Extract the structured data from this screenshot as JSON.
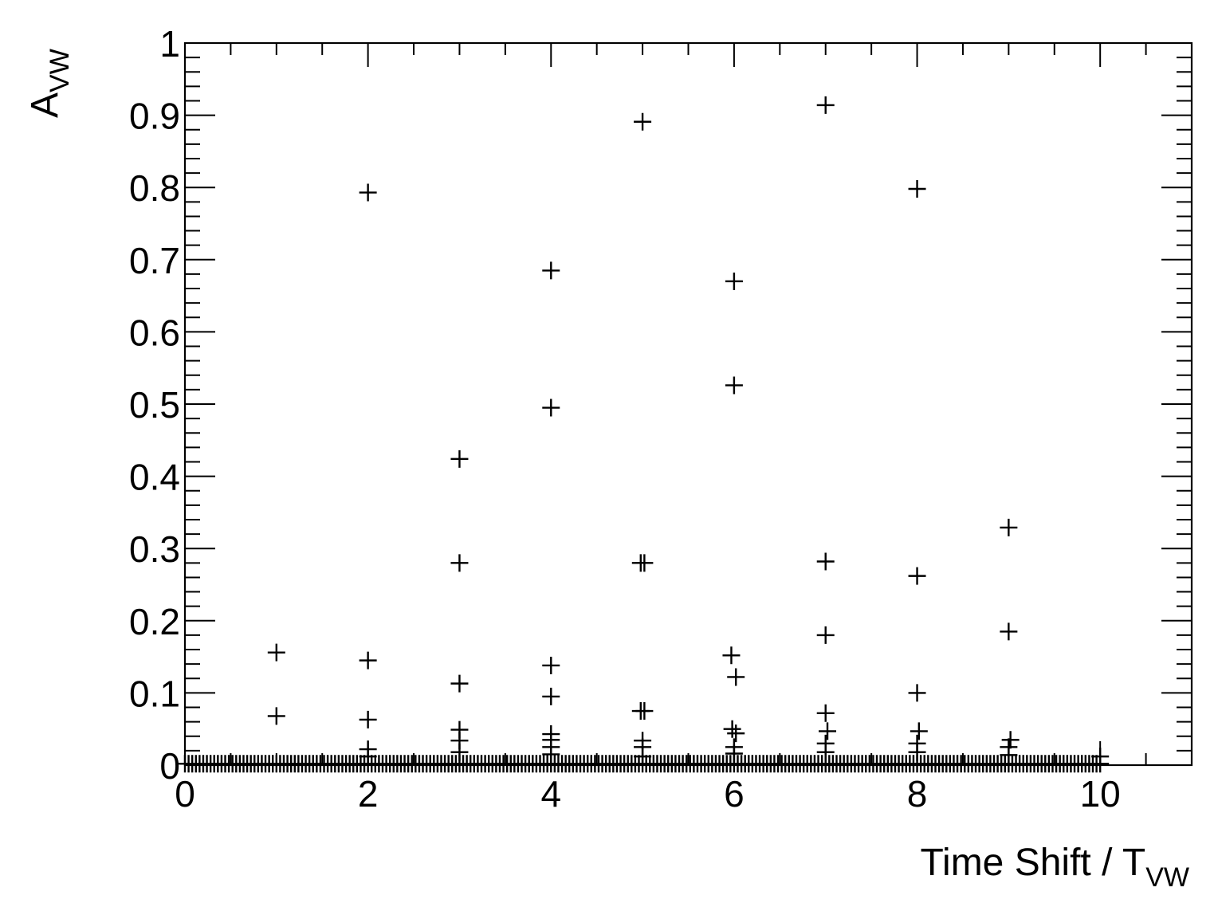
{
  "chart_data": {
    "type": "scatter",
    "marker": "+",
    "color": "#000000",
    "xlabel": {
      "main": "Time Shift / T",
      "sub": "VW"
    },
    "ylabel": {
      "main": "A",
      "sub": "VW"
    },
    "xlim": [
      0,
      11
    ],
    "ylim": [
      0,
      1
    ],
    "xticks": [
      0,
      2,
      4,
      6,
      8,
      10
    ],
    "xtick_labels": [
      "0",
      "2",
      "4",
      "6",
      "8",
      "10"
    ],
    "yticks": [
      0,
      0.1,
      0.2,
      0.3,
      0.4,
      0.5,
      0.6,
      0.7,
      0.8,
      0.9,
      1
    ],
    "ytick_labels": [
      "0",
      "0.1",
      "0.2",
      "0.3",
      "0.4",
      "0.5",
      "0.6",
      "0.7",
      "0.8",
      "0.9",
      "1"
    ],
    "grid": false,
    "legend": "none",
    "points": [
      [
        1.0,
        0.156
      ],
      [
        1.0,
        0.068
      ],
      [
        2.0,
        0.793
      ],
      [
        2.0,
        0.145
      ],
      [
        2.0,
        0.063
      ],
      [
        2.0,
        0.022
      ],
      [
        2.0,
        0.012
      ],
      [
        3.0,
        0.424
      ],
      [
        3.0,
        0.28
      ],
      [
        3.0,
        0.113
      ],
      [
        3.0,
        0.049
      ],
      [
        3.0,
        0.034
      ],
      [
        3.0,
        0.018
      ],
      [
        4.0,
        0.685
      ],
      [
        4.0,
        0.495
      ],
      [
        4.0,
        0.138
      ],
      [
        4.0,
        0.095
      ],
      [
        4.0,
        0.043
      ],
      [
        4.0,
        0.035
      ],
      [
        4.0,
        0.025
      ],
      [
        4.0,
        0.015
      ],
      [
        5.0,
        0.891
      ],
      [
        4.98,
        0.28
      ],
      [
        5.02,
        0.28
      ],
      [
        4.98,
        0.075
      ],
      [
        5.02,
        0.075
      ],
      [
        5.0,
        0.034
      ],
      [
        5.0,
        0.025
      ],
      [
        5.0,
        0.012
      ],
      [
        6.0,
        0.67
      ],
      [
        6.0,
        0.526
      ],
      [
        5.97,
        0.152
      ],
      [
        6.02,
        0.122
      ],
      [
        5.98,
        0.05
      ],
      [
        6.02,
        0.044
      ],
      [
        6.0,
        0.025
      ],
      [
        6.0,
        0.016
      ],
      [
        7.0,
        0.914
      ],
      [
        7.0,
        0.282
      ],
      [
        7.0,
        0.18
      ],
      [
        7.0,
        0.072
      ],
      [
        7.02,
        0.047
      ],
      [
        7.0,
        0.03
      ],
      [
        7.0,
        0.018
      ],
      [
        8.0,
        0.798
      ],
      [
        8.0,
        0.262
      ],
      [
        8.0,
        0.1
      ],
      [
        8.02,
        0.047
      ],
      [
        8.0,
        0.03
      ],
      [
        8.0,
        0.018
      ],
      [
        9.0,
        0.329
      ],
      [
        9.0,
        0.185
      ],
      [
        9.02,
        0.035
      ],
      [
        9.0,
        0.025
      ],
      [
        9.0,
        0.014
      ],
      [
        10.0,
        0.012
      ]
    ],
    "baseline_series": {
      "x_from": 0,
      "x_to": 10,
      "x_step": 0.04,
      "y": 0.002
    }
  }
}
